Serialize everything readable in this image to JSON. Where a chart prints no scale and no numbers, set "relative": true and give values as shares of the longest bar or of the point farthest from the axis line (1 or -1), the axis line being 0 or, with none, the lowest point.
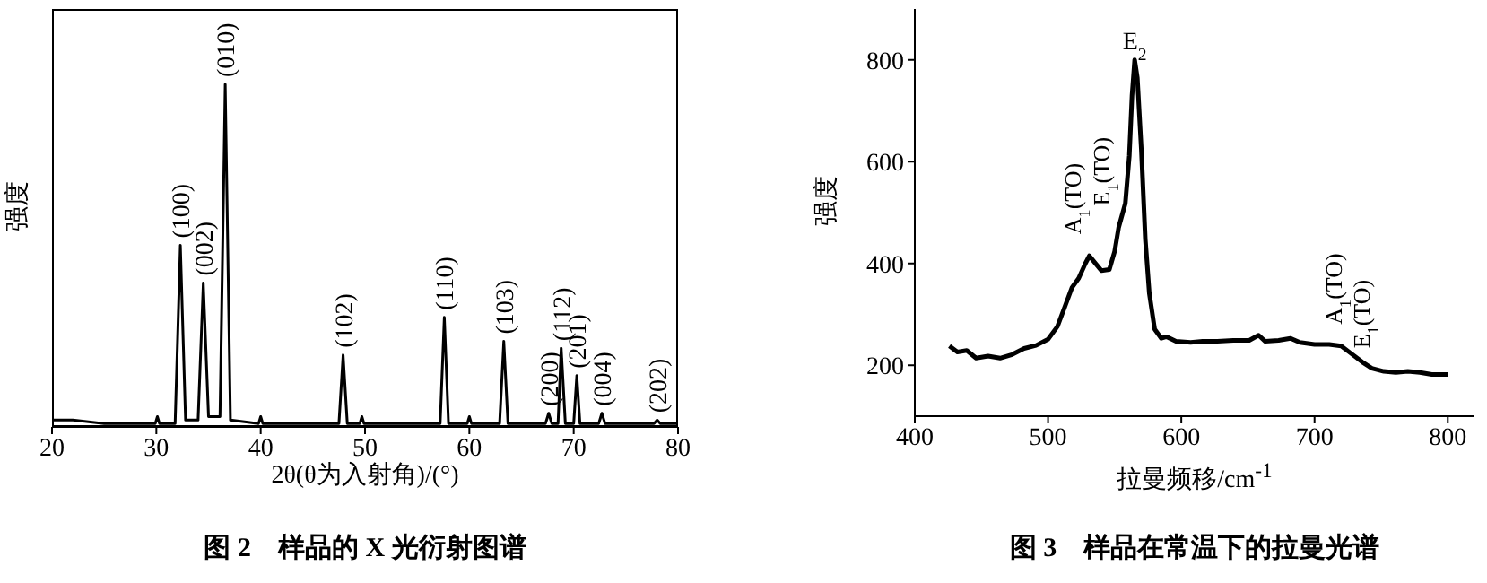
{
  "chart_data": [
    {
      "type": "line",
      "relative": true,
      "xlabel": "2θ(θ为入射角)/(°)",
      "ylabel": "强度",
      "color": "#000000",
      "marker": "none",
      "line_style": "solid",
      "grid": false,
      "legend": false,
      "xlim": [
        20,
        80
      ],
      "xticks": [
        20,
        30,
        40,
        50,
        60,
        70,
        80
      ],
      "x": [
        20,
        22,
        25,
        28,
        29.9,
        30.1,
        30.3,
        31.8,
        32.3,
        32.8,
        34.0,
        34.5,
        35.0,
        36.1,
        36.6,
        37.1,
        39.8,
        40,
        40.2,
        47.5,
        47.9,
        48.3,
        49.5,
        49.7,
        49.9,
        57.2,
        57.6,
        58,
        59.8,
        60,
        60.2,
        62.9,
        63.3,
        63.7,
        67.3,
        67.6,
        67.9,
        68.5,
        68.8,
        69.2,
        70.0,
        70.3,
        70.6,
        72.4,
        72.7,
        73,
        77.7,
        78,
        78.3,
        80
      ],
      "values": [
        0.02,
        0.02,
        0.01,
        0.01,
        0.01,
        0.03,
        0.01,
        0.01,
        0.53,
        0.02,
        0.02,
        0.42,
        0.03,
        0.03,
        1,
        0.02,
        0.01,
        0.03,
        0.01,
        0.01,
        0.21,
        0.01,
        0.01,
        0.03,
        0.01,
        0.01,
        0.32,
        0.01,
        0.01,
        0.03,
        0.01,
        0.01,
        0.25,
        0.01,
        0.01,
        0.04,
        0.01,
        0.01,
        0.23,
        0.01,
        0.01,
        0.15,
        0.01,
        0.01,
        0.04,
        0.01,
        0.01,
        0.02,
        0.01,
        0.01
      ],
      "annotations": [
        {
          "text": "(100)",
          "x": 32.3,
          "y": 0.53
        },
        {
          "text": "(002)",
          "x": 34.5,
          "y": 0.42
        },
        {
          "text": "(010)",
          "x": 36.6,
          "y": 1
        },
        {
          "text": "(102)",
          "x": 47.9,
          "y": 0.21
        },
        {
          "text": "(110)",
          "x": 57.6,
          "y": 0.32
        },
        {
          "text": "(103)",
          "x": 63.3,
          "y": 0.25
        },
        {
          "text": "(200)",
          "x": 67.6,
          "y": 0.04
        },
        {
          "text": "(112)",
          "x": 68.8,
          "y": 0.23
        },
        {
          "text": "(201)",
          "x": 70.3,
          "y": 0.15
        },
        {
          "text": "(004)",
          "x": 72.7,
          "y": 0.04
        },
        {
          "text": "(202)",
          "x": 78,
          "y": 0.02
        },
        "图 2　样品的 X 光衍射图谱"
      ]
    },
    {
      "type": "line",
      "xlabel": "拉曼频移/cm$^{-1}$",
      "ylabel": "强度",
      "color": "#000000",
      "marker": "none",
      "line_style": "solid",
      "grid": false,
      "legend": false,
      "xlim": [
        400,
        820
      ],
      "xticks": [
        400,
        500,
        600,
        700,
        800
      ],
      "ylim": [
        100,
        900
      ],
      "yticks": [
        200,
        400,
        600,
        800
      ],
      "x": [
        426,
        432,
        439,
        446,
        455,
        464,
        473,
        482,
        491,
        500,
        507,
        513,
        518,
        523,
        528,
        531,
        535,
        540,
        546,
        550,
        553,
        558,
        561,
        563,
        565,
        567,
        570,
        573,
        576,
        580,
        585,
        589,
        596,
        607,
        616,
        627,
        639,
        651,
        658,
        663,
        673,
        682,
        689,
        700,
        711,
        720,
        727,
        736,
        743,
        752,
        761,
        770,
        779,
        788,
        800
      ],
      "values": [
        238,
        226,
        229,
        214,
        218,
        214,
        221,
        233,
        239,
        251,
        276,
        318,
        353,
        371,
        400,
        415,
        402,
        386,
        388,
        424,
        471,
        518,
        612,
        729,
        800,
        765,
        624,
        447,
        341,
        271,
        253,
        256,
        247,
        245,
        247,
        247,
        249,
        249,
        259,
        247,
        249,
        253,
        245,
        241,
        241,
        238,
        224,
        206,
        194,
        188,
        186,
        188,
        186,
        182,
        182
      ],
      "annotations": [
        {
          "text": "E$_{2}$",
          "x": 565,
          "y": 800
        },
        {
          "text": "A$_{1}$(TO)",
          "x": 531,
          "y": 415
        },
        {
          "text": "E$_{1}$(TO)",
          "x": 553,
          "y": 471
        },
        {
          "text": "A$_{1}$(TO)",
          "x": 727,
          "y": 238
        },
        {
          "text": "E$_{1}$(TO)",
          "x": 748,
          "y": 191
        },
        "图 3　样品在常温下的拉曼光谱"
      ]
    }
  ]
}
